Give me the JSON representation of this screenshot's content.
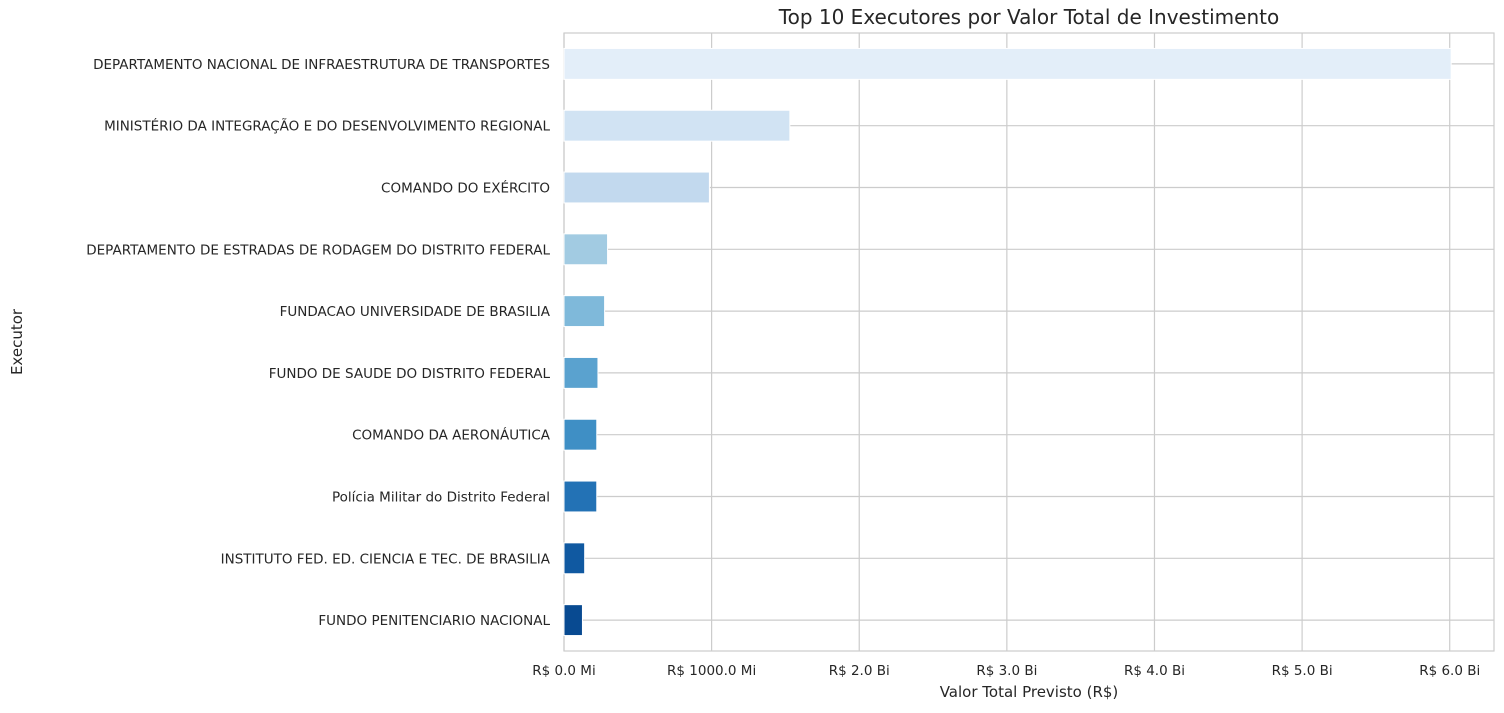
{
  "chart_data": {
    "type": "bar",
    "orientation": "horizontal",
    "title": "Top 10 Executores por Valor Total de Investimento",
    "xlabel": "Valor Total Previsto (R$)",
    "ylabel": "Executor",
    "categories": [
      "DEPARTAMENTO NACIONAL DE INFRAESTRUTURA DE TRANSPORTES",
      "MINISTÉRIO DA INTEGRAÇÃO E DO DESENVOLVIMENTO REGIONAL",
      "COMANDO DO EXÉRCITO",
      "DEPARTAMENTO DE ESTRADAS DE RODAGEM DO DISTRITO FEDERAL",
      "FUNDACAO UNIVERSIDADE DE BRASILIA",
      "FUNDO DE SAUDE DO DISTRITO FEDERAL",
      "COMANDO DA AERONÁUTICA",
      "Polícia Militar do Distrito Federal",
      "INSTITUTO FED. ED. CIENCIA E TEC. DE BRASILIA",
      "FUNDO PENITENCIARIO NACIONAL"
    ],
    "values": [
      6010000000,
      1530000000,
      985000000,
      295000000,
      275000000,
      230000000,
      222000000,
      222000000,
      140000000,
      125000000
    ],
    "colors": [
      "#e3eef9",
      "#d1e3f3",
      "#c2d9ee",
      "#a2cbe2",
      "#7fb9da",
      "#5aa2cf",
      "#3f8fc5",
      "#2372b5",
      "#1059a1",
      "#084a91"
    ],
    "xlim": [
      0,
      6300000000
    ],
    "x_ticks": [
      0,
      1000000000,
      2000000000,
      3000000000,
      4000000000,
      5000000000,
      6000000000
    ],
    "x_tick_labels": [
      "R$ 0.0 Mi",
      "R$ 1000.0 Mi",
      "R$ 2.0 Bi",
      "R$ 3.0 Bi",
      "R$ 4.0 Bi",
      "R$ 5.0 Bi",
      "R$ 6.0 Bi"
    ],
    "grid": true,
    "grid_color": "#cccccc",
    "background": "#ffffff"
  }
}
